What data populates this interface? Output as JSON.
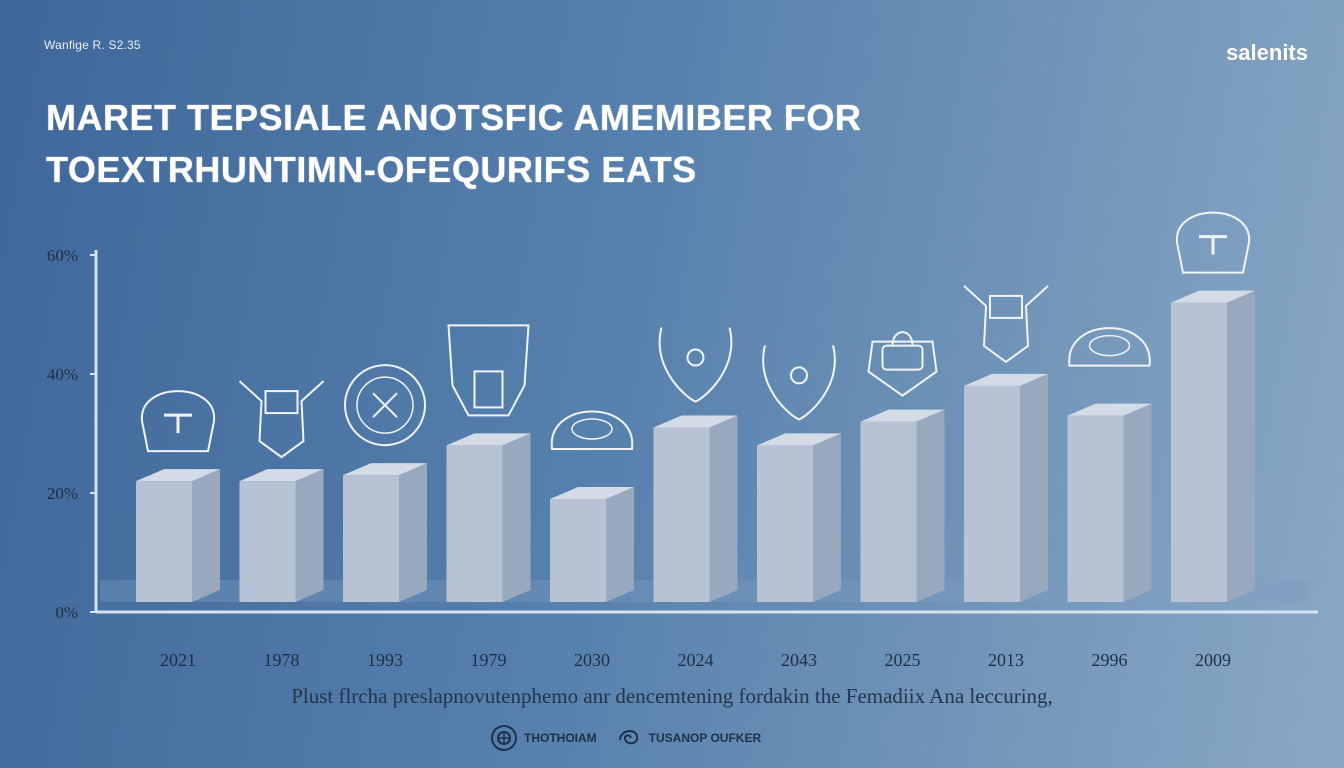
{
  "header": {
    "top_left_text": "Wanfige R. S2.35",
    "top_right_text": "salenits"
  },
  "title": {
    "line1": "MARET TEPSIALE ANOTSFIC AMEMIBER FOR",
    "line2": "TOEXTRHUNTIMN-OFEQURIFS EATS"
  },
  "chart_data": {
    "type": "bar",
    "categories": [
      "2021",
      "1978",
      "1993",
      "1979",
      "2030",
      "2024",
      "2043",
      "2025",
      "2013",
      "2996",
      "2009"
    ],
    "values": [
      22,
      22,
      23,
      28,
      19,
      31,
      28,
      32,
      38,
      33,
      52
    ],
    "ylim": [
      0,
      60
    ],
    "yticks": [
      0,
      20,
      40,
      60
    ],
    "ytick_labels": [
      "0%",
      "20%",
      "40%",
      "60%"
    ],
    "title": "",
    "xlabel": "",
    "ylabel": "",
    "grid": false,
    "bar_color": "#b7c3d4",
    "bar_side_color": "#98a8be",
    "bar_top_color": "#d3dbe6",
    "axis_color": "#d6e2ef"
  },
  "icons": [
    "helmet-icon",
    "armor-icon",
    "shield-crest-icon",
    "helmet-crest-icon",
    "ornament-icon",
    "crest-icon",
    "crest-icon",
    "bag-icon",
    "armor-icon",
    "ornament-icon",
    "helmet-icon"
  ],
  "caption": "Plust flrcha preslapnovutenphemo anr dencemtening fordakin the Femadiix Ana leccuring,",
  "footer": {
    "logo1_text": "THOTHOIAM",
    "logo2_text": "TUSANOP OUFKER"
  }
}
